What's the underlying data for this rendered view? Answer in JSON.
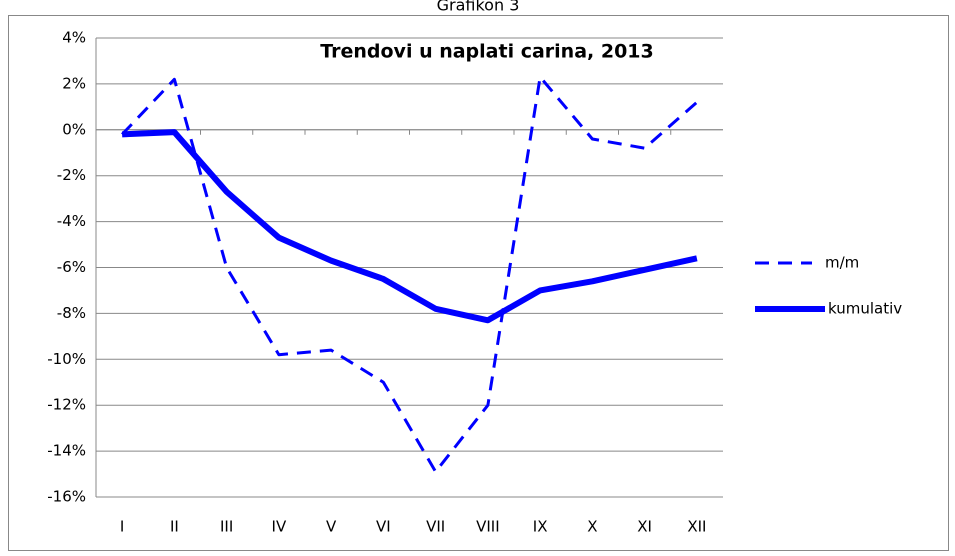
{
  "chart_data": {
    "type": "line",
    "heading": "Grafikon 3",
    "title": "Trendovi u naplati carina, 2013",
    "categories": [
      "I",
      "II",
      "III",
      "IV",
      "V",
      "VI",
      "VII",
      "VIII",
      "IX",
      "X",
      "XI",
      "XII"
    ],
    "series": [
      {
        "name": "m/m",
        "color": "#0000ff",
        "dashed": true,
        "values": [
          -0.2,
          2.2,
          -6.0,
          -9.8,
          -9.6,
          -11.0,
          -14.9,
          -12.0,
          2.3,
          -0.4,
          -0.8,
          1.2
        ]
      },
      {
        "name": "kumulativ",
        "color": "#0000ff",
        "dashed": false,
        "values": [
          -0.2,
          -0.1,
          -2.7,
          -4.7,
          -5.7,
          -6.5,
          -7.8,
          -8.3,
          -7.0,
          -6.6,
          -6.1,
          -5.6
        ]
      }
    ],
    "ylim": [
      -16,
      4
    ],
    "yticks": [
      {
        "value": -16,
        "label": "-16%"
      },
      {
        "value": -14,
        "label": "-14%"
      },
      {
        "value": -12,
        "label": "-12%"
      },
      {
        "value": -10,
        "label": "-10%"
      },
      {
        "value": -8,
        "label": "-8%"
      },
      {
        "value": -6,
        "label": "-6%"
      },
      {
        "value": -4,
        "label": "-4%"
      },
      {
        "value": -2,
        "label": "-2%"
      },
      {
        "value": 0,
        "label": "0%"
      },
      {
        "value": 2,
        "label": "2%"
      },
      {
        "value": 4,
        "label": "4%"
      }
    ],
    "grid": true
  }
}
